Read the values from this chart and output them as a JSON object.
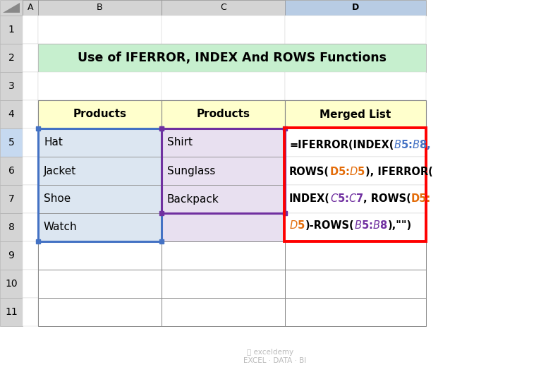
{
  "title": "Use of IFERROR, INDEX And ROWS Functions",
  "title_bg": "#c6efce",
  "title_color": "#000000",
  "col_headers": [
    "Products",
    "Products",
    "Merged List"
  ],
  "col_header_bg": "#ffffcc",
  "col_B_data": [
    "Hat",
    "Jacket",
    "Shoe",
    "Watch"
  ],
  "col_C_data": [
    "Shirt",
    "Sunglass",
    "Backpack"
  ],
  "col_letters": [
    "A",
    "B",
    "C",
    "D"
  ],
  "col_B_fill": "#dce6f1",
  "col_C_fill": "#e8e0f0",
  "red_box_color": "#ff0000",
  "bg_color": "#ffffff",
  "col_header_sel_bg": "#b8cce4",
  "row_num_sel_bg": "#c6d9f0",
  "formula_lines": [
    [
      [
        "=IFERROR(INDEX(",
        "#000000"
      ],
      [
        "$B$5:$B$8,",
        "#4472c4"
      ]
    ],
    [
      [
        "ROWS(",
        "#000000"
      ],
      [
        "D5:$D$5",
        "#e36c09"
      ],
      [
        "), IFERROR(",
        "#000000"
      ]
    ],
    [
      [
        "INDEX(",
        "#000000"
      ],
      [
        "$C$5:$C$7",
        "#7030a0"
      ],
      [
        ", ROWS(",
        "#000000"
      ],
      [
        "D5:",
        "#e36c09"
      ]
    ],
    [
      [
        "$D$5",
        "#e36c09"
      ],
      [
        ")-ROWS(",
        "#000000"
      ],
      [
        "$B$5:$B$8",
        "#7030a0"
      ],
      [
        "),\"\")",
        "#000000"
      ]
    ]
  ],
  "blue_border": "#4472c4",
  "purple_border": "#7030a0"
}
